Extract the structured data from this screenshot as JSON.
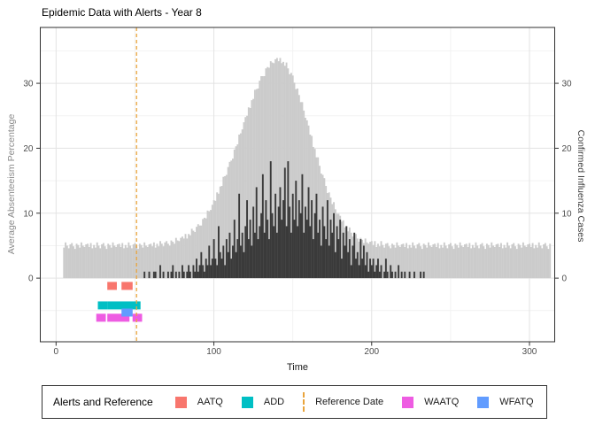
{
  "title": "Epidemic Data with Alerts - Year 8",
  "legend": {
    "title": "Alerts and Reference",
    "items": [
      {
        "label": "AATQ",
        "type": "square",
        "color": "#F8766D"
      },
      {
        "label": "ADD",
        "type": "square",
        "color": "#00BFC4"
      },
      {
        "label": "Reference Date",
        "type": "dashed-line",
        "color": "#E9A43C"
      },
      {
        "label": "WAATQ",
        "type": "square",
        "color": "#EE5CE2"
      },
      {
        "label": "WFATQ",
        "type": "square",
        "color": "#619CFF"
      }
    ]
  },
  "colors": {
    "area_fill": "#CBCBCB",
    "cases_fill": "#3A3A3A",
    "reference": "#E9A43C",
    "panel_border": "#2F2F2F",
    "grid_major": "#E3E3E3",
    "grid_minor": "#F2F2F2",
    "tick_mark": "#333333",
    "tick_text": "#4D4D4D"
  },
  "chart_data": {
    "type": "bar",
    "title": "Epidemic Data with Alerts - Year 8",
    "x_axis": {
      "label": "Time",
      "ticks": [
        0,
        100,
        200,
        300
      ],
      "minor": [
        50,
        150,
        250
      ],
      "domain": [
        -10,
        316
      ]
    },
    "y_axis": {
      "left_label": "Average Absenteeism Percentage",
      "right_label": "Confirmed Influenza Cases",
      "ticks": [
        0,
        10,
        20,
        30
      ],
      "minor": [
        -5,
        5,
        15,
        25,
        35
      ],
      "domain": [
        -9.8,
        38.6
      ]
    },
    "x_start": 5,
    "x_step": 1,
    "reference_date": 51,
    "series": [
      {
        "name": "Average Absenteeism Percentage",
        "axis": "left",
        "color": "#CBCBCB",
        "values": [
          4.7,
          5.5,
          5.0,
          4.6,
          5.2,
          5.4,
          4.9,
          4.5,
          5.3,
          5.1,
          4.7,
          5.5,
          5.0,
          4.8,
          5.2,
          5.3,
          4.8,
          5.4,
          4.6,
          5.1,
          4.7,
          5.5,
          5.0,
          4.6,
          5.2,
          5.4,
          4.9,
          4.5,
          5.3,
          5.1,
          4.7,
          5.5,
          5.0,
          4.8,
          5.2,
          5.3,
          4.8,
          5.4,
          4.6,
          5.1,
          4.7,
          5.5,
          5.0,
          4.6,
          5.2,
          5.4,
          4.9,
          4.5,
          5.3,
          5.1,
          4.7,
          5.5,
          5.0,
          4.8,
          5.2,
          5.3,
          4.9,
          5.5,
          4.7,
          5.3,
          4.9,
          5.7,
          5.3,
          4.9,
          5.5,
          5.7,
          5.3,
          5.0,
          5.8,
          5.6,
          5.3,
          6.2,
          5.8,
          5.7,
          6.2,
          6.4,
          6.1,
          6.8,
          6.1,
          6.8,
          6.6,
          7.6,
          7.3,
          7.1,
          7.9,
          8.3,
          8.1,
          8.1,
          9.1,
          9.3,
          9.2,
          10.4,
          10.3,
          10.5,
          11.3,
          12.0,
          11.9,
          13.2,
          13.0,
          14.1,
          14.2,
          15.6,
          15.7,
          15.9,
          17.1,
          17.9,
          18.1,
          18.4,
          19.8,
          20.3,
          20.6,
          22.1,
          22.3,
          22.9,
          24.0,
          24.8,
          25.0,
          26.3,
          26.2,
          27.4,
          27.6,
          29.0,
          29.1,
          29.2,
          30.4,
          31.1,
          31.1,
          31.1,
          32.3,
          32.5,
          32.4,
          33.4,
          33.2,
          33.1,
          33.7,
          33.9,
          33.4,
          33.9,
          33.1,
          33.3,
          32.7,
          33.2,
          32.3,
          31.4,
          31.6,
          31.2,
          30.1,
          29.1,
          29.2,
          28.2,
          27.1,
          27.1,
          25.8,
          24.7,
          24.3,
          23.5,
          22.1,
          21.9,
          20.2,
          19.9,
          18.6,
          18.6,
          17.3,
          16.1,
          15.9,
          15.4,
          14.2,
          13.1,
          13.2,
          12.4,
          11.4,
          11.7,
          10.6,
          9.9,
          9.9,
          9.6,
          8.7,
          8.9,
          7.8,
          8.0,
          7.2,
          7.8,
          7.0,
          6.4,
          6.8,
          6.8,
          6.1,
          5.6,
          6.2,
          5.9,
          5.4,
          6.1,
          5.5,
          5.3,
          5.6,
          5.7,
          5.1,
          5.7,
          4.8,
          5.3,
          4.9,
          5.7,
          5.1,
          4.7,
          5.3,
          5.4,
          4.9,
          4.6,
          5.3,
          5.1,
          4.7,
          5.5,
          5.0,
          4.8,
          5.2,
          5.3,
          4.8,
          5.4,
          4.6,
          5.1,
          4.7,
          5.5,
          5.0,
          4.6,
          5.2,
          5.4,
          4.9,
          4.5,
          5.3,
          5.1,
          4.7,
          5.5,
          5.0,
          4.8,
          5.2,
          5.3,
          4.8,
          5.4,
          4.6,
          5.1,
          4.7,
          5.5,
          5.0,
          4.6,
          5.2,
          5.4,
          4.9,
          4.5,
          5.3,
          5.1,
          4.7,
          5.5,
          5.0,
          4.8,
          5.2,
          5.3,
          4.8,
          5.4,
          4.6,
          5.1,
          4.7,
          5.5,
          5.0,
          4.6,
          5.2,
          5.4,
          4.9,
          4.5,
          5.3,
          5.1,
          4.7,
          5.5,
          5.0,
          4.8,
          5.2,
          5.3,
          4.8,
          5.4,
          4.6,
          5.1,
          4.7,
          5.5,
          5.0,
          4.6,
          5.2,
          5.4,
          4.9,
          4.5,
          5.3,
          5.1,
          4.7,
          5.5,
          5.0,
          4.8,
          5.2,
          5.3,
          4.8,
          5.4,
          4.6,
          5.1,
          4.7,
          5.5,
          5.0,
          4.6,
          5.2,
          5.4,
          4.9,
          4.5,
          5.3
        ]
      },
      {
        "name": "Confirmed Influenza Cases",
        "axis": "right",
        "color": "#3A3A3A",
        "values": [
          0,
          0,
          0,
          0,
          0,
          0,
          0,
          0,
          0,
          0,
          0,
          0,
          0,
          0,
          0,
          0,
          0,
          0,
          0,
          0,
          0,
          0,
          0,
          0,
          0,
          0,
          0,
          0,
          0,
          0,
          0,
          0,
          0,
          0,
          0,
          0,
          0,
          0,
          0,
          0,
          0,
          0,
          0,
          0,
          0,
          0,
          0,
          0,
          0,
          0,
          0,
          1,
          0,
          0,
          1,
          0,
          0,
          1,
          1,
          0,
          0,
          2,
          0,
          1,
          0,
          0,
          1,
          0,
          1,
          2,
          0,
          1,
          0,
          1,
          0,
          2,
          1,
          0,
          1,
          2,
          1,
          0,
          2,
          1,
          3,
          1,
          2,
          4,
          2,
          1,
          3,
          2,
          5,
          2,
          3,
          6,
          3,
          2,
          8,
          4,
          3,
          5,
          2,
          6,
          4,
          7,
          3,
          5,
          9,
          4,
          6,
          13,
          5,
          7,
          4,
          8,
          12,
          6,
          9,
          5,
          11,
          7,
          14,
          6,
          8,
          10,
          16,
          7,
          12,
          9,
          6,
          18,
          10,
          8,
          13,
          7,
          11,
          14,
          9,
          12,
          17,
          8,
          18,
          11,
          7,
          13,
          9,
          15,
          8,
          12,
          10,
          16,
          7,
          11,
          9,
          14,
          8,
          12,
          6,
          10,
          13,
          7,
          9,
          5,
          11,
          8,
          6,
          12,
          5,
          9,
          7,
          10,
          4,
          8,
          6,
          9,
          3,
          7,
          5,
          8,
          4,
          6,
          2,
          5,
          7,
          3,
          4,
          2,
          6,
          3,
          5,
          2,
          4,
          1,
          3,
          2,
          3,
          1,
          2,
          3,
          1,
          2,
          0,
          1,
          3,
          1,
          0,
          2,
          1,
          0,
          1,
          0,
          2,
          0,
          1,
          0,
          1,
          0,
          0,
          1,
          0,
          0,
          1,
          0,
          0,
          0,
          1,
          0,
          1,
          0,
          0,
          0,
          0,
          0,
          0,
          0,
          0,
          0,
          0,
          0,
          0,
          0,
          0,
          0,
          0,
          0,
          0,
          0,
          0,
          0,
          0,
          0,
          0,
          0,
          0,
          0,
          0,
          0,
          0,
          0,
          0,
          0,
          0,
          0,
          0,
          0,
          0,
          0,
          0,
          0,
          0,
          0,
          0,
          0,
          0,
          0,
          0,
          0,
          0,
          0,
          0,
          0,
          0,
          0,
          0,
          0,
          0,
          0,
          0,
          0,
          0,
          0,
          0,
          0,
          0,
          0,
          0,
          0,
          0,
          0,
          0,
          0,
          0,
          0,
          0,
          0,
          0,
          0,
          0
        ]
      }
    ],
    "alerts": [
      {
        "name": "AATQ",
        "color": "#F8766D",
        "lane": -1.2,
        "segments": [
          [
            35,
            36
          ],
          [
            44,
            46
          ]
        ]
      },
      {
        "name": "ADD",
        "color": "#00BFC4",
        "lane": -4.2,
        "segments": [
          [
            29,
            30
          ],
          [
            35,
            51
          ]
        ]
      },
      {
        "name": "WAATQ",
        "color": "#EE5CE2",
        "lane": -6.1,
        "segments": [
          [
            28,
            29
          ],
          [
            35,
            44
          ],
          [
            51,
            52
          ]
        ]
      },
      {
        "name": "WFATQ",
        "color": "#619CFF",
        "lane": -5.3,
        "segments": [
          [
            44,
            46
          ]
        ]
      }
    ]
  }
}
